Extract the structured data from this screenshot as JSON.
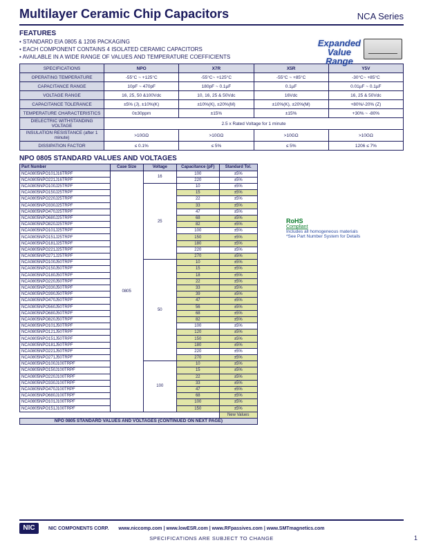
{
  "header": {
    "title": "Multilayer Ceramic Chip Capacitors",
    "series": "NCA Series"
  },
  "features": {
    "heading": "FEATURES",
    "items": [
      "STANDARD EIA 0805 & 1206 PACKAGING",
      "EACH COMPONENT CONTAINS 4 ISOLATED CERAMIC CAPACITORS",
      "AVAILABLE IN A WIDE RANGE OF VALUES AND TEMPERATURE COEFFICIENTS"
    ]
  },
  "expanded_badge": {
    "l1": "Expanded",
    "l2": "Value",
    "l3": "Range"
  },
  "spec": {
    "cols": [
      "SPECIFICATIONS",
      "NPO",
      "X7R",
      "X5R",
      "Y5V"
    ],
    "rows": [
      [
        "OPERATING TEMPERATURE",
        "-55°C ~ +125°C",
        "-55°C~ +125°C",
        "-55°C ~ +85°C",
        "-30°C~ +85°C"
      ],
      [
        "CAPACITANCE RANGE",
        "10pF ~ 470pF",
        "180pF ~ 0.1µF",
        "0.1µF",
        "0.01µF ~ 0.1µF"
      ],
      [
        "VOLTAGE RANGE",
        "16, 25, 50 &100Vdc",
        "10, 16, 25 & 50Vdc",
        "16Vdc",
        "16, 25 & 50Vdc"
      ],
      [
        "CAPACITANCE TOLERANCE",
        "±5% (J), ±10%(K)",
        "±10%(K), ±20%(M)",
        "±10%(K), ±20%(M)",
        "+80%/-20% (Z)"
      ],
      [
        "TEMPERATURE CHARACTERISTICS",
        "0±30ppm",
        "±15%",
        "±15%",
        "+30% ~ -80%"
      ],
      [
        "DIELECTRIC WITHSTANDING VOLTAGE",
        "2.5 x Rated Voltage for 1 minute",
        "",
        "",
        ""
      ],
      [
        "INSULATION RESISTANCE (after 1 minute)",
        ">10GΩ",
        ">10GΩ",
        ">10GΩ",
        ">10GΩ"
      ],
      [
        "DISSIPATION FACTOR",
        "≤ 0.1%",
        "≤ 5%",
        "≤ 5%",
        "1206 ≤ 7%"
      ]
    ]
  },
  "section": "NPO 0805 STANDARD VALUES AND VOLTAGES",
  "valcols": [
    "Part Number",
    "Case Size",
    "Voltage",
    "Capacitance (pF)",
    "Standard Tol."
  ],
  "case_size": "0805",
  "groups": [
    {
      "voltage": "16",
      "rows": [
        {
          "pn": "NCA0805NPO101J16TRPF",
          "cap": "100",
          "tol": "±5%",
          "new": false
        },
        {
          "pn": "NCA0805NPO221J16TRPF",
          "cap": "220",
          "tol": "±5%",
          "new": false
        }
      ]
    },
    {
      "voltage": "25",
      "rows": [
        {
          "pn": "NCA0805NPO100J25TRPF",
          "cap": "10",
          "tol": "±5%",
          "new": false
        },
        {
          "pn": "NCA0805NPO150J25TRPF",
          "cap": "15",
          "tol": "±5%",
          "new": true
        },
        {
          "pn": "NCA0805NPO220J25TRPF",
          "cap": "22",
          "tol": "±5%",
          "new": false
        },
        {
          "pn": "NCA0805NPO330J25TRPF",
          "cap": "33",
          "tol": "±5%",
          "new": true
        },
        {
          "pn": "NCA0805NPO470J25TRPF",
          "cap": "47",
          "tol": "±5%",
          "new": false
        },
        {
          "pn": "NCA0805NPO680J25TRPF",
          "cap": "68",
          "tol": "±5%",
          "new": true
        },
        {
          "pn": "NCA0805NPO820J25TRPF",
          "cap": "82",
          "tol": "±5%",
          "new": true
        },
        {
          "pn": "NCA0805NPO101J25TRPF",
          "cap": "100",
          "tol": "±5%",
          "new": false
        },
        {
          "pn": "NCA0805NPO151J25TRPF",
          "cap": "150",
          "tol": "±5%",
          "new": true
        },
        {
          "pn": "NCA0805NPO181J25TRPF",
          "cap": "180",
          "tol": "±5%",
          "new": true
        },
        {
          "pn": "NCA0805NPO221J25TRPF",
          "cap": "220",
          "tol": "±5%",
          "new": false
        },
        {
          "pn": "NCA0805NPO271J25TRPF",
          "cap": "270",
          "tol": "±5%",
          "new": true
        }
      ]
    },
    {
      "voltage": "50",
      "rows": [
        {
          "pn": "NCA0805NPO100J50TRPF",
          "cap": "10",
          "tol": "±5%",
          "new": true
        },
        {
          "pn": "NCA0805NPO150J50TRPF",
          "cap": "15",
          "tol": "±5%",
          "new": true
        },
        {
          "pn": "NCA0805NPO180J50TRPF",
          "cap": "18",
          "tol": "±5%",
          "new": true
        },
        {
          "pn": "NCA0805NPO220J50TRPF",
          "cap": "22",
          "tol": "±5%",
          "new": true
        },
        {
          "pn": "NCA0805NPO330J50TRPF",
          "cap": "33",
          "tol": "±5%",
          "new": true
        },
        {
          "pn": "NCA0805NPO390J50TRPF",
          "cap": "39",
          "tol": "±5%",
          "new": true
        },
        {
          "pn": "NCA0805NPO470J50TRPF",
          "cap": "47",
          "tol": "±5%",
          "new": true
        },
        {
          "pn": "NCA0805NPO560J50TRPF",
          "cap": "56",
          "tol": "±5%",
          "new": true
        },
        {
          "pn": "NCA0805NPO680J50TRPF",
          "cap": "68",
          "tol": "±5%",
          "new": true
        },
        {
          "pn": "NCA0805NPO820J50TRPF",
          "cap": "82",
          "tol": "±5%",
          "new": true
        },
        {
          "pn": "NCA0805NPO101J50TRPF",
          "cap": "100",
          "tol": "±5%",
          "new": false
        },
        {
          "pn": "NCA0805NPO121J50TRPF",
          "cap": "120",
          "tol": "±5%",
          "new": true
        },
        {
          "pn": "NCA0805NPO151J50TRPF",
          "cap": "150",
          "tol": "±5%",
          "new": true
        },
        {
          "pn": "NCA0805NPO181J50TRPF",
          "cap": "180",
          "tol": "±5%",
          "new": true
        },
        {
          "pn": "NCA0805NPO221J50TRPF",
          "cap": "220",
          "tol": "±5%",
          "new": false
        },
        {
          "pn": "NCA0805NPO271J50TRPF",
          "cap": "270",
          "tol": "±5%",
          "new": true
        }
      ]
    },
    {
      "voltage": "100",
      "rows": [
        {
          "pn": "NCA0805NPO100J100TRPF",
          "cap": "10",
          "tol": "±5%",
          "new": true
        },
        {
          "pn": "NCA0805NPO150J100TRPF",
          "cap": "15",
          "tol": "±5%",
          "new": true
        },
        {
          "pn": "NCA0805NPO220J100TRPF",
          "cap": "22",
          "tol": "±5%",
          "new": true
        },
        {
          "pn": "NCA0805NPO330J100TRPF",
          "cap": "33",
          "tol": "±5%",
          "new": true
        },
        {
          "pn": "NCA0805NPO470J100TRPF",
          "cap": "47",
          "tol": "±5%",
          "new": true
        },
        {
          "pn": "NCA0805NPO680J100TRPF",
          "cap": "68",
          "tol": "±5%",
          "new": true
        },
        {
          "pn": "NCA0805NPO101J100TRPF",
          "cap": "100",
          "tol": "±5%",
          "new": true
        },
        {
          "pn": "NCA0805NPO151J100TRPF",
          "cap": "150",
          "tol": "±5%",
          "new": true
        }
      ]
    }
  ],
  "new_values_key": "New Values",
  "cont_text": "NPO 0805 STANDARD VALUES AND VOLTAGES (CONTINUED ON NEXT PAGE)",
  "rohs": {
    "title": "RoHS",
    "sub": "Compliant",
    "line1": "Includes all homogeneous materials",
    "line2": "*See Part Number System for Details"
  },
  "footer": {
    "corp": "NIC COMPONENTS CORP.",
    "links": [
      "www.niccomp.com",
      "www.lowESR.com",
      "www.RFpassives.com",
      "www.SMTmagnetics.com"
    ],
    "disclaimer": "SPECIFICATIONS ARE SUBJECT TO CHANGE",
    "page": "1",
    "logo": "NIC"
  },
  "colors": {
    "header_bg": "#c9cde0",
    "row_bg": "#d6d9e6",
    "accent": "#1a1a5c",
    "newval_bg": "#e2e6a8"
  }
}
